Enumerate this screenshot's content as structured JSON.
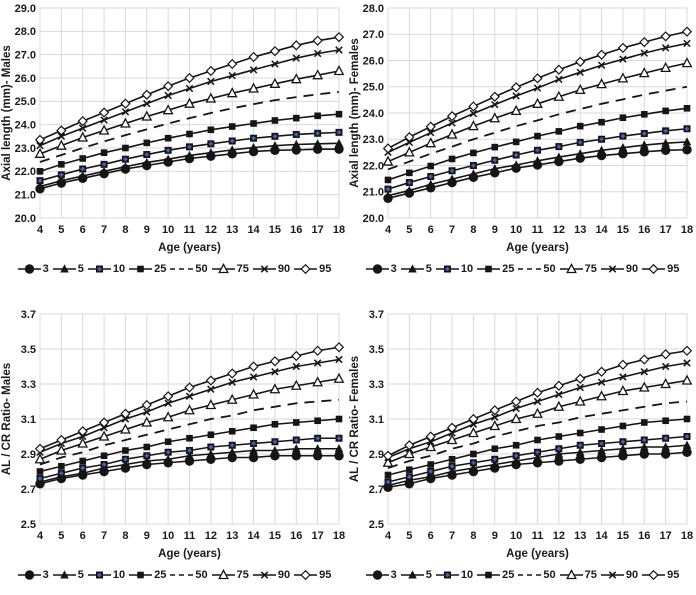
{
  "colors": {
    "line": "#151515",
    "grid": "#d9d9d9",
    "text": "#1a1a1a",
    "accent_blue": "#3a67c9",
    "background": "#ffffff"
  },
  "legend": {
    "entries": [
      {
        "label": "3",
        "marker": "circle-filled"
      },
      {
        "label": "5",
        "marker": "triangle-filled"
      },
      {
        "label": "10",
        "marker": "square-blue"
      },
      {
        "label": "25",
        "marker": "square-filled"
      },
      {
        "label": "50",
        "marker": "dash"
      },
      {
        "label": "75",
        "marker": "triangle-open"
      },
      {
        "label": "90",
        "marker": "x-cross"
      },
      {
        "label": "95",
        "marker": "diamond-open"
      }
    ]
  },
  "chart_data": [
    {
      "id": "axial-length-males",
      "type": "line",
      "xlabel": "Age (years)",
      "ylabel": "Axial length (mm)- Males",
      "x": [
        4,
        5,
        6,
        7,
        8,
        9,
        10,
        11,
        12,
        13,
        14,
        15,
        16,
        17,
        18
      ],
      "ylim": [
        20.0,
        29.0
      ],
      "ytick_step": 1.0,
      "grid": true,
      "legend_position": "bottom",
      "series": [
        {
          "name": "3",
          "marker": "circle-filled",
          "dashed": false,
          "values": [
            21.25,
            21.5,
            21.7,
            21.9,
            22.1,
            22.25,
            22.4,
            22.55,
            22.65,
            22.75,
            22.85,
            22.9,
            22.92,
            22.95,
            22.95
          ]
        },
        {
          "name": "5",
          "marker": "triangle-filled",
          "dashed": false,
          "values": [
            21.35,
            21.6,
            21.8,
            22.0,
            22.2,
            22.38,
            22.52,
            22.68,
            22.8,
            22.92,
            23.02,
            23.1,
            23.15,
            23.18,
            23.2
          ]
        },
        {
          "name": "10",
          "marker": "square-blue",
          "dashed": false,
          "values": [
            21.6,
            21.85,
            22.1,
            22.3,
            22.52,
            22.72,
            22.9,
            23.05,
            23.18,
            23.3,
            23.42,
            23.5,
            23.58,
            23.63,
            23.67
          ]
        },
        {
          "name": "25",
          "marker": "square-filled",
          "dashed": false,
          "values": [
            22.0,
            22.3,
            22.55,
            22.8,
            23.0,
            23.22,
            23.42,
            23.6,
            23.78,
            23.92,
            24.05,
            24.18,
            24.28,
            24.38,
            24.45
          ]
        },
        {
          "name": "50",
          "marker": "dash",
          "dashed": true,
          "values": [
            22.4,
            22.7,
            23.0,
            23.28,
            23.55,
            23.8,
            24.05,
            24.28,
            24.5,
            24.7,
            24.88,
            25.05,
            25.18,
            25.3,
            25.4
          ]
        },
        {
          "name": "75",
          "marker": "triangle-open",
          "dashed": false,
          "values": [
            22.75,
            23.1,
            23.45,
            23.75,
            24.05,
            24.35,
            24.62,
            24.9,
            25.12,
            25.35,
            25.55,
            25.75,
            25.95,
            26.12,
            26.3
          ]
        },
        {
          "name": "90",
          "marker": "x-cross",
          "dashed": false,
          "values": [
            23.1,
            23.5,
            23.85,
            24.2,
            24.55,
            24.9,
            25.25,
            25.55,
            25.85,
            26.1,
            26.35,
            26.6,
            26.85,
            27.05,
            27.2
          ]
        },
        {
          "name": "95",
          "marker": "diamond-open",
          "dashed": false,
          "values": [
            23.35,
            23.75,
            24.15,
            24.52,
            24.9,
            25.28,
            25.65,
            26.0,
            26.3,
            26.6,
            26.9,
            27.15,
            27.4,
            27.6,
            27.75
          ]
        }
      ]
    },
    {
      "id": "axial-length-females",
      "type": "line",
      "xlabel": "Age (years)",
      "ylabel": "Axial length (mm)- Females",
      "x": [
        4,
        5,
        6,
        7,
        8,
        9,
        10,
        11,
        12,
        13,
        14,
        15,
        16,
        17,
        18
      ],
      "ylim": [
        20.0,
        28.0
      ],
      "ytick_step": 1.0,
      "grid": true,
      "legend_position": "bottom",
      "series": [
        {
          "name": "3",
          "marker": "circle-filled",
          "dashed": false,
          "values": [
            20.75,
            20.95,
            21.15,
            21.35,
            21.55,
            21.72,
            21.9,
            22.02,
            22.15,
            22.28,
            22.38,
            22.45,
            22.52,
            22.58,
            22.6
          ]
        },
        {
          "name": "5",
          "marker": "triangle-filled",
          "dashed": false,
          "values": [
            20.85,
            21.05,
            21.28,
            21.48,
            21.68,
            21.88,
            22.02,
            22.18,
            22.32,
            22.45,
            22.58,
            22.68,
            22.78,
            22.85,
            22.9
          ]
        },
        {
          "name": "10",
          "marker": "square-blue",
          "dashed": false,
          "values": [
            21.1,
            21.35,
            21.58,
            21.8,
            22.0,
            22.2,
            22.4,
            22.58,
            22.72,
            22.88,
            23.0,
            23.12,
            23.22,
            23.32,
            23.4
          ]
        },
        {
          "name": "25",
          "marker": "square-filled",
          "dashed": false,
          "values": [
            21.45,
            21.72,
            21.98,
            22.25,
            22.48,
            22.7,
            22.9,
            23.12,
            23.3,
            23.5,
            23.65,
            23.82,
            23.95,
            24.08,
            24.18
          ]
        },
        {
          "name": "50",
          "marker": "dash",
          "dashed": true,
          "values": [
            21.85,
            22.15,
            22.45,
            22.72,
            23.0,
            23.25,
            23.5,
            23.72,
            23.95,
            24.15,
            24.35,
            24.52,
            24.7,
            24.85,
            25.0
          ]
        },
        {
          "name": "75",
          "marker": "triangle-open",
          "dashed": false,
          "values": [
            22.15,
            22.5,
            22.85,
            23.18,
            23.5,
            23.8,
            24.08,
            24.35,
            24.62,
            24.88,
            25.1,
            25.32,
            25.52,
            25.72,
            25.9
          ]
        },
        {
          "name": "90",
          "marker": "x-cross",
          "dashed": false,
          "values": [
            22.5,
            22.88,
            23.25,
            23.62,
            23.98,
            24.32,
            24.65,
            24.95,
            25.28,
            25.55,
            25.82,
            26.05,
            26.28,
            26.48,
            26.65
          ]
        },
        {
          "name": "95",
          "marker": "diamond-open",
          "dashed": false,
          "values": [
            22.65,
            23.08,
            23.48,
            23.88,
            24.25,
            24.62,
            24.98,
            25.32,
            25.65,
            25.95,
            26.22,
            26.48,
            26.7,
            26.92,
            27.1
          ]
        }
      ]
    },
    {
      "id": "al-cr-ratio-males",
      "type": "line",
      "xlabel": "Age (years)",
      "ylabel": "AL / CR Ratio- Males",
      "x": [
        4,
        5,
        6,
        7,
        8,
        9,
        10,
        11,
        12,
        13,
        14,
        15,
        16,
        17,
        18
      ],
      "ylim": [
        2.5,
        3.7
      ],
      "ytick_step": 0.2,
      "grid": true,
      "legend_position": "bottom",
      "series": [
        {
          "name": "3",
          "marker": "circle-filled",
          "dashed": false,
          "values": [
            2.73,
            2.76,
            2.78,
            2.8,
            2.82,
            2.84,
            2.85,
            2.86,
            2.87,
            2.88,
            2.88,
            2.89,
            2.89,
            2.89,
            2.89
          ]
        },
        {
          "name": "5",
          "marker": "triangle-filled",
          "dashed": false,
          "values": [
            2.74,
            2.77,
            2.79,
            2.82,
            2.84,
            2.86,
            2.87,
            2.89,
            2.9,
            2.91,
            2.92,
            2.92,
            2.93,
            2.93,
            2.93
          ]
        },
        {
          "name": "10",
          "marker": "square-blue",
          "dashed": false,
          "values": [
            2.76,
            2.79,
            2.82,
            2.84,
            2.87,
            2.89,
            2.91,
            2.92,
            2.94,
            2.95,
            2.96,
            2.97,
            2.98,
            2.99,
            2.99
          ]
        },
        {
          "name": "25",
          "marker": "square-filled",
          "dashed": false,
          "values": [
            2.8,
            2.83,
            2.86,
            2.89,
            2.92,
            2.94,
            2.97,
            2.99,
            3.01,
            3.03,
            3.05,
            3.07,
            3.08,
            3.09,
            3.1
          ]
        },
        {
          "name": "50",
          "marker": "dash",
          "dashed": true,
          "values": [
            2.84,
            2.88,
            2.91,
            2.95,
            2.98,
            3.01,
            3.04,
            3.07,
            3.1,
            3.12,
            3.15,
            3.17,
            3.19,
            3.2,
            3.21
          ]
        },
        {
          "name": "75",
          "marker": "triangle-open",
          "dashed": false,
          "values": [
            2.87,
            2.92,
            2.96,
            3.0,
            3.04,
            3.08,
            3.11,
            3.15,
            3.18,
            3.21,
            3.24,
            3.27,
            3.29,
            3.31,
            3.33
          ]
        },
        {
          "name": "90",
          "marker": "x-cross",
          "dashed": false,
          "values": [
            2.91,
            2.96,
            3.0,
            3.05,
            3.1,
            3.14,
            3.19,
            3.23,
            3.27,
            3.31,
            3.34,
            3.37,
            3.4,
            3.42,
            3.44
          ]
        },
        {
          "name": "95",
          "marker": "diamond-open",
          "dashed": false,
          "values": [
            2.93,
            2.98,
            3.03,
            3.08,
            3.13,
            3.18,
            3.23,
            3.28,
            3.32,
            3.36,
            3.4,
            3.43,
            3.46,
            3.49,
            3.51
          ]
        }
      ]
    },
    {
      "id": "al-cr-ratio-females",
      "type": "line",
      "xlabel": "Age (years)",
      "ylabel": "AL / CR Ratio- Females",
      "x": [
        4,
        5,
        6,
        7,
        8,
        9,
        10,
        11,
        12,
        13,
        14,
        15,
        16,
        17,
        18
      ],
      "ylim": [
        2.5,
        3.7
      ],
      "ytick_step": 0.2,
      "grid": true,
      "legend_position": "bottom",
      "series": [
        {
          "name": "3",
          "marker": "circle-filled",
          "dashed": false,
          "values": [
            2.71,
            2.73,
            2.76,
            2.78,
            2.8,
            2.82,
            2.84,
            2.85,
            2.86,
            2.87,
            2.88,
            2.89,
            2.9,
            2.9,
            2.91
          ]
        },
        {
          "name": "5",
          "marker": "triangle-filled",
          "dashed": false,
          "values": [
            2.72,
            2.75,
            2.77,
            2.8,
            2.82,
            2.84,
            2.86,
            2.88,
            2.9,
            2.91,
            2.92,
            2.93,
            2.94,
            2.94,
            2.95
          ]
        },
        {
          "name": "10",
          "marker": "square-blue",
          "dashed": false,
          "values": [
            2.74,
            2.77,
            2.8,
            2.83,
            2.85,
            2.87,
            2.89,
            2.91,
            2.93,
            2.95,
            2.96,
            2.97,
            2.98,
            2.99,
            3.0
          ]
        },
        {
          "name": "25",
          "marker": "square-filled",
          "dashed": false,
          "values": [
            2.78,
            2.81,
            2.84,
            2.87,
            2.9,
            2.93,
            2.95,
            2.98,
            3.0,
            3.02,
            3.04,
            3.06,
            3.08,
            3.09,
            3.1
          ]
        },
        {
          "name": "50",
          "marker": "dash",
          "dashed": true,
          "values": [
            2.82,
            2.86,
            2.89,
            2.93,
            2.96,
            3.0,
            3.03,
            3.06,
            3.08,
            3.11,
            3.13,
            3.15,
            3.17,
            3.19,
            3.2
          ]
        },
        {
          "name": "75",
          "marker": "triangle-open",
          "dashed": false,
          "values": [
            2.85,
            2.9,
            2.94,
            2.98,
            3.02,
            3.06,
            3.1,
            3.13,
            3.17,
            3.2,
            3.23,
            3.26,
            3.28,
            3.3,
            3.32
          ]
        },
        {
          "name": "90",
          "marker": "x-cross",
          "dashed": false,
          "values": [
            2.88,
            2.93,
            2.97,
            3.02,
            3.07,
            3.11,
            3.16,
            3.2,
            3.24,
            3.28,
            3.31,
            3.34,
            3.37,
            3.4,
            3.42
          ]
        },
        {
          "name": "95",
          "marker": "diamond-open",
          "dashed": false,
          "values": [
            2.89,
            2.95,
            3.0,
            3.05,
            3.1,
            3.15,
            3.2,
            3.25,
            3.29,
            3.33,
            3.37,
            3.41,
            3.44,
            3.47,
            3.49
          ]
        }
      ]
    }
  ]
}
